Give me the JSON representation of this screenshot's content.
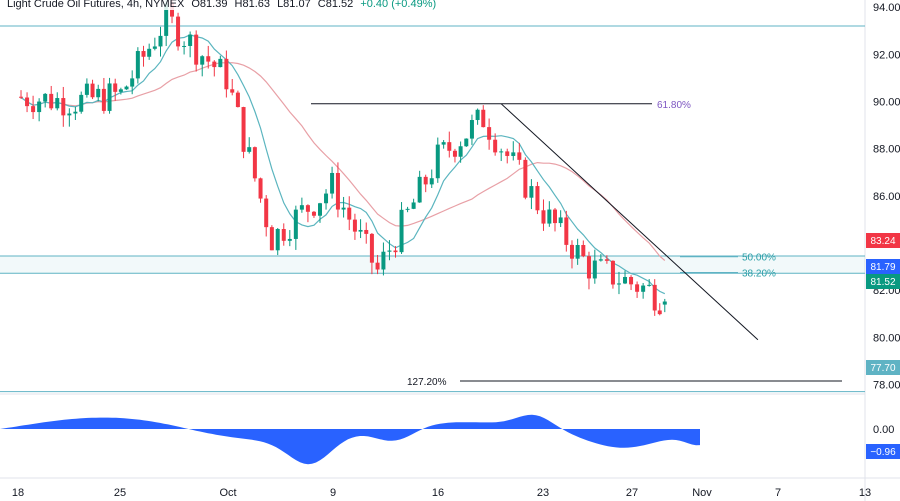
{
  "legend": {
    "symbol": "Light Crude Oil Futures, 4h, NYMEX",
    "open_label": "O81.39",
    "high_label": "H81.63",
    "low_label": "L81.07",
    "close_label": "C81.52",
    "change": "+0.40 (+0.49%)"
  },
  "colors": {
    "up": "#089981",
    "down": "#f23645",
    "ma_fast": "#5bb5bf",
    "ma_slow": "#e8a0a6",
    "oscillator": "#2962ff",
    "level_line": "#5fb3c4",
    "trendline": "#131722"
  },
  "chart_data": {
    "type": "candlestick",
    "title": "",
    "timeframe": "4h",
    "ylim": [
      77.6,
      94.3
    ],
    "x_ticks": [
      "18",
      "25",
      "Oct",
      "9",
      "16",
      "23",
      "27",
      "Nov",
      "7",
      "13"
    ],
    "y_ticks": [
      "94.00",
      "92.00",
      "90.00",
      "88.00",
      "86.00",
      "84.00",
      "82.00",
      "80.00",
      "78.00"
    ],
    "price_badges": [
      {
        "value": "83.24",
        "color": "#f23645"
      },
      {
        "value": "81.79",
        "color": "#2962ff"
      },
      {
        "value": "81.52",
        "color": "#089981"
      },
      {
        "value": "77.70",
        "color": "#5fb3c4"
      }
    ],
    "fib_levels": [
      {
        "label": "61.80%",
        "price": 89.9
      },
      {
        "label": "50.00%",
        "price": 83.42
      },
      {
        "label": "38.20%",
        "price": 82.75
      },
      {
        "label": "127.20%",
        "price": 78.15
      }
    ],
    "horizontal_levels": [
      93.2,
      83.45,
      82.72,
      77.7
    ],
    "trendline": {
      "from": {
        "date": "Oct 20",
        "price": 89.9
      },
      "to": {
        "date": "Nov 6",
        "price": 79.9
      }
    },
    "series_close_weekly_approx": [
      {
        "date": "Sep 18",
        "close": 90.2
      },
      {
        "date": "Sep 22",
        "close": 90.0
      },
      {
        "date": "Sep 25",
        "close": 90.3
      },
      {
        "date": "Sep 28",
        "close": 93.5
      },
      {
        "date": "Oct 2",
        "close": 91.0
      },
      {
        "date": "Oct 5",
        "close": 84.2
      },
      {
        "date": "Oct 9",
        "close": 86.4
      },
      {
        "date": "Oct 12",
        "close": 82.8
      },
      {
        "date": "Oct 16",
        "close": 87.6
      },
      {
        "date": "Oct 19",
        "close": 89.3
      },
      {
        "date": "Oct 23",
        "close": 85.3
      },
      {
        "date": "Oct 26",
        "close": 83.0
      },
      {
        "date": "Oct 30",
        "close": 82.0
      },
      {
        "date": "Oct 31",
        "close": 81.52
      }
    ],
    "oscillator": {
      "ticks": [
        "0.00"
      ],
      "current": "−0.96"
    }
  }
}
